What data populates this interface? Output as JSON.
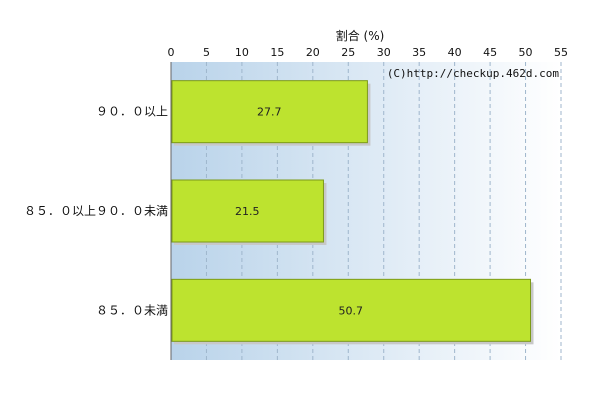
{
  "chart_data": {
    "type": "bar",
    "orientation": "horizontal",
    "xlabel": "割合 (%)",
    "xlim": [
      0,
      55
    ],
    "xticks": [
      "0",
      "5",
      "10",
      "15",
      "20",
      "25",
      "30",
      "35",
      "40",
      "45",
      "50",
      "55"
    ],
    "categories": [
      "９０．０以上",
      "８５．０以上９０．０未満",
      "８５．０未満"
    ],
    "values": [
      27.7,
      21.5,
      50.7
    ],
    "data_labels": [
      "27.7",
      "21.5",
      "50.7"
    ],
    "grid": true,
    "annotation": "(C)http://checkup.462d.com",
    "colors": {
      "bar": "#bde32f",
      "bar_border": "#7c9a18",
      "plot_bg_left": "#b9d3ea",
      "plot_bg_right": "#ffffff",
      "grid": "#9fb6cc"
    }
  }
}
